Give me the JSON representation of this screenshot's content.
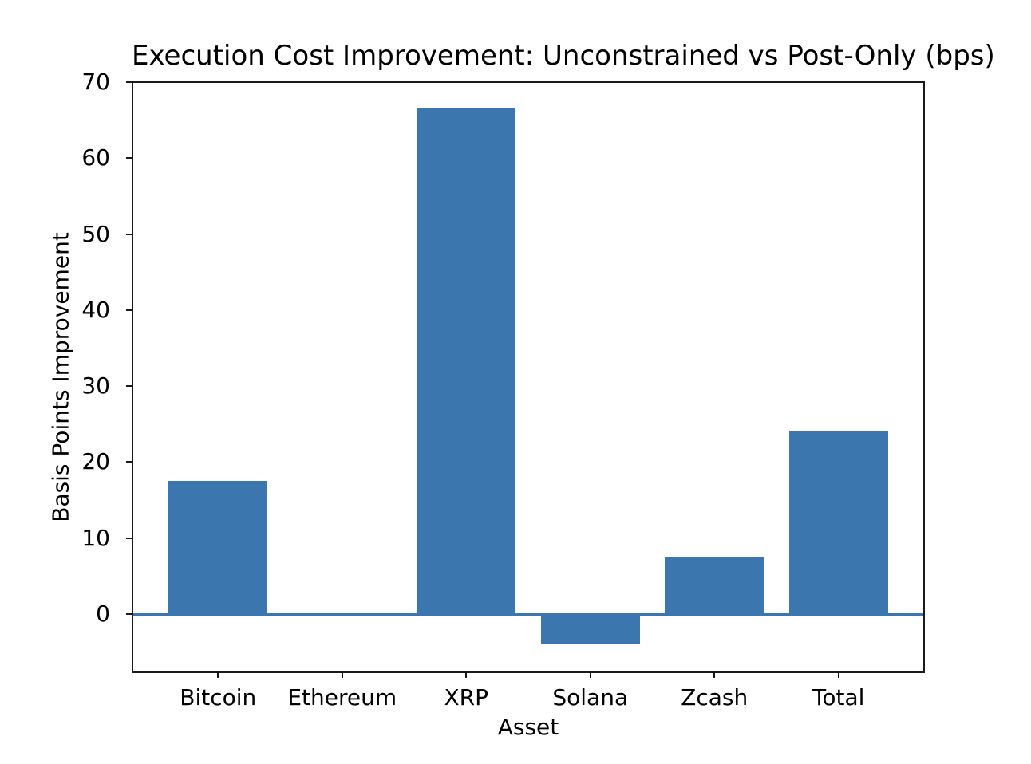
{
  "chart_data": {
    "type": "bar",
    "title": "Execution Cost Improvement: Unconstrained vs Post-Only (bps)",
    "xlabel": "Asset",
    "ylabel": "Basis Points Improvement",
    "categories": [
      "Bitcoin",
      "Ethereum",
      "XRP",
      "Solana",
      "Zcash",
      "Total"
    ],
    "values": [
      17.5,
      0.0,
      66.6,
      -4.0,
      7.4,
      24.0
    ],
    "yticks": [
      0,
      10,
      20,
      30,
      40,
      50,
      60,
      70
    ],
    "ylim": [
      -7.66,
      70
    ],
    "xlim": [
      -0.69,
      5.69
    ],
    "bar_width_units": 0.8,
    "bar_color": "#3b76af",
    "zero_line_color": "#3b76af",
    "grid": false,
    "legend": "none",
    "background_color": "#ffffff"
  }
}
